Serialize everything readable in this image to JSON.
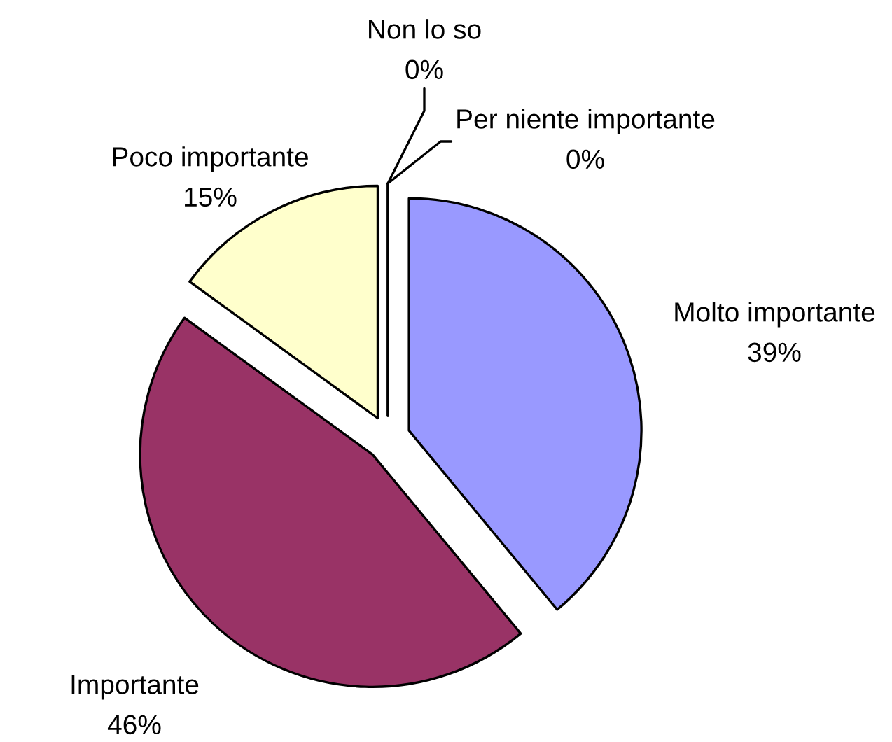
{
  "chart_data": {
    "type": "pie",
    "categories": [
      "Molto importante",
      "Importante",
      "Poco importante",
      "Per niente importante",
      "Non lo so"
    ],
    "values": [
      39,
      46,
      15,
      0,
      0
    ],
    "value_labels": [
      "39%",
      "46%",
      "15%",
      "0%",
      "0%"
    ],
    "colors": [
      "#9999ff",
      "#993366",
      "#ffffcc",
      "#000000",
      "#000000"
    ]
  }
}
